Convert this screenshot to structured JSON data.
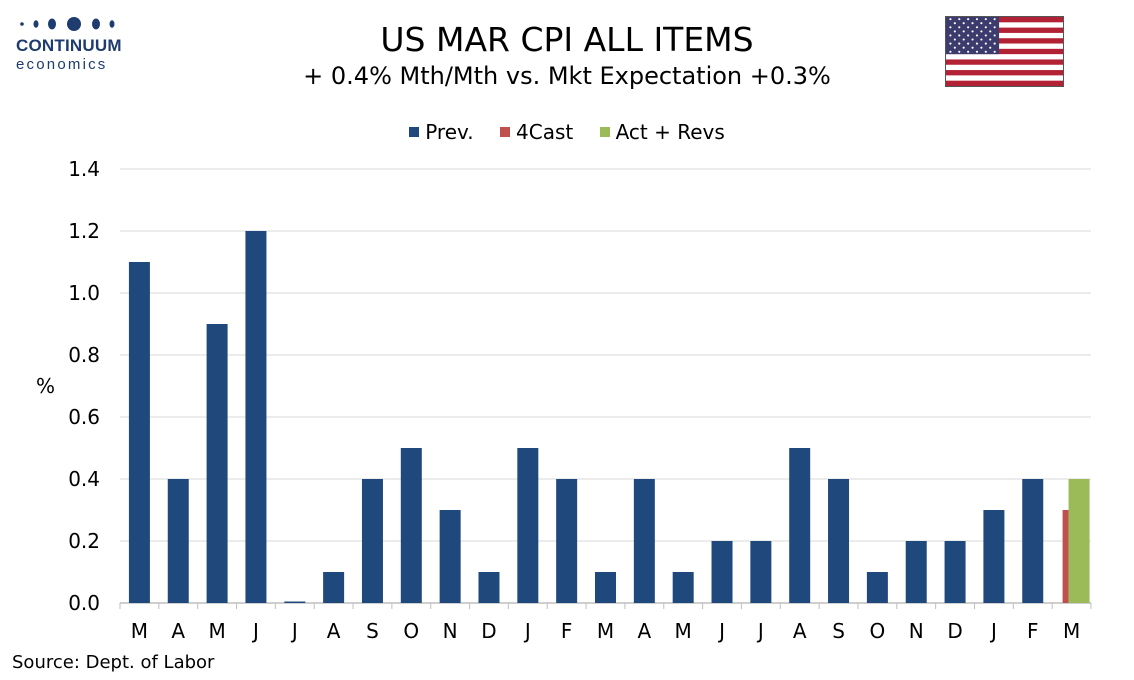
{
  "logo": {
    "word": "CONTINUUM",
    "sub": "economics"
  },
  "header": {
    "title": "US MAR CPI ALL ITEMS",
    "subtitle": "+ 0.4% Mth/Mth  vs. Mkt Expectation +0.3%"
  },
  "flag": {
    "name": "us-flag-icon"
  },
  "colors": {
    "prev": "#1f497d",
    "forecast": "#c0504d",
    "actual": "#9bbb59",
    "grid": "#d9d9d9"
  },
  "source": "Source: Dept. of Labor",
  "chart_data": {
    "type": "bar",
    "ylabel": "%",
    "ylim": [
      0,
      1.4
    ],
    "yticks": [
      "0.0",
      "0.2",
      "0.4",
      "0.6",
      "0.8",
      "1.0",
      "1.2",
      "1.4"
    ],
    "grid": true,
    "legend_position": "top-center",
    "categories": [
      "M",
      "A",
      "M",
      "J",
      "J",
      "A",
      "S",
      "O",
      "N",
      "D",
      "J",
      "F",
      "M",
      "A",
      "M",
      "J",
      "J",
      "A",
      "S",
      "O",
      "N",
      "D",
      "J",
      "F",
      "M"
    ],
    "series": [
      {
        "name": "Prev.",
        "values": [
          1.1,
          0.4,
          0.9,
          1.2,
          0.0,
          0.1,
          0.4,
          0.5,
          0.3,
          0.1,
          0.5,
          0.4,
          0.1,
          0.4,
          0.1,
          0.2,
          0.2,
          0.5,
          0.4,
          0.1,
          0.2,
          0.2,
          0.3,
          0.4,
          null
        ]
      },
      {
        "name": "4Cast",
        "values": [
          null,
          null,
          null,
          null,
          null,
          null,
          null,
          null,
          null,
          null,
          null,
          null,
          null,
          null,
          null,
          null,
          null,
          null,
          null,
          null,
          null,
          null,
          null,
          null,
          0.3
        ]
      },
      {
        "name": "Act + Revs",
        "values": [
          null,
          null,
          null,
          null,
          null,
          null,
          null,
          null,
          null,
          null,
          null,
          null,
          null,
          null,
          null,
          null,
          null,
          null,
          null,
          null,
          null,
          null,
          null,
          null,
          0.4
        ]
      }
    ]
  }
}
